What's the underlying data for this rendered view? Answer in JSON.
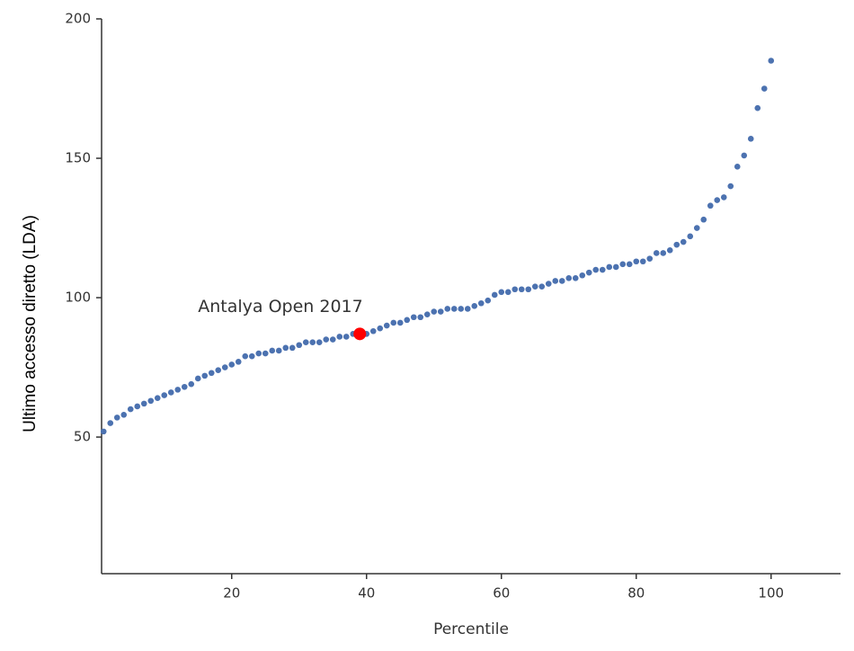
{
  "chart_data": {
    "type": "scatter",
    "xlabel": "Percentile",
    "ylabel": "Ultimo accesso diretto (LDA)",
    "x": [
      1,
      2,
      3,
      4,
      5,
      6,
      7,
      8,
      9,
      10,
      11,
      12,
      13,
      14,
      15,
      16,
      17,
      18,
      19,
      20,
      21,
      22,
      23,
      24,
      25,
      26,
      27,
      28,
      29,
      30,
      31,
      32,
      33,
      34,
      35,
      36,
      37,
      38,
      39,
      40,
      41,
      42,
      43,
      44,
      45,
      46,
      47,
      48,
      49,
      50,
      51,
      52,
      53,
      54,
      55,
      56,
      57,
      58,
      59,
      60,
      61,
      62,
      63,
      64,
      65,
      66,
      67,
      68,
      69,
      70,
      71,
      72,
      73,
      74,
      75,
      76,
      77,
      78,
      79,
      80,
      81,
      82,
      83,
      84,
      85,
      86,
      87,
      88,
      89,
      90,
      91,
      92,
      93,
      94,
      95,
      96,
      97,
      98,
      99,
      100
    ],
    "values": [
      52,
      55,
      57,
      58,
      60,
      61,
      62,
      63,
      64,
      65,
      66,
      67,
      68,
      69,
      71,
      72,
      73,
      74,
      75,
      76,
      77,
      79,
      79,
      80,
      80,
      81,
      81,
      82,
      82,
      83,
      84,
      84,
      84,
      85,
      85,
      86,
      86,
      87,
      87,
      87,
      88,
      89,
      90,
      91,
      91,
      92,
      93,
      93,
      94,
      95,
      95,
      96,
      96,
      96,
      96,
      97,
      98,
      99,
      101,
      102,
      102,
      103,
      103,
      103,
      104,
      104,
      105,
      106,
      106,
      107,
      107,
      108,
      109,
      110,
      110,
      111,
      111,
      112,
      112,
      113,
      113,
      114,
      116,
      116,
      117,
      119,
      120,
      122,
      125,
      128,
      133,
      135,
      136,
      140,
      147,
      151,
      157,
      168,
      175,
      185
    ],
    "color": "#4c72b0",
    "highlight": {
      "x": 39,
      "y": 87,
      "label": "Antalya Open 2017",
      "color": "#ff0000"
    },
    "xlim": [
      0.7,
      110.3
    ],
    "ylim": [
      1,
      200
    ],
    "xticks": [
      20,
      40,
      60,
      80,
      100
    ],
    "yticks": [
      50,
      100,
      150,
      200
    ]
  }
}
